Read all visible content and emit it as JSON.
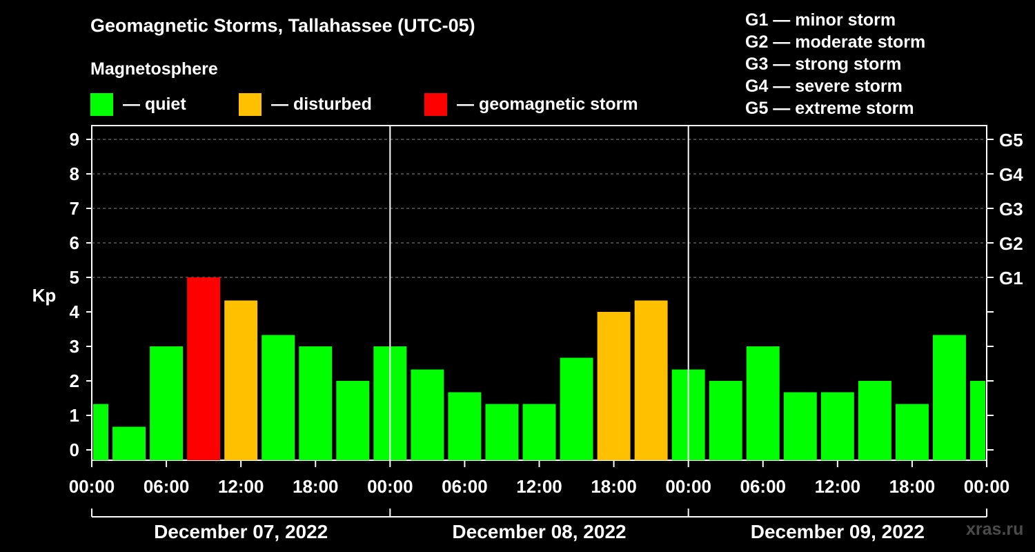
{
  "header": {
    "title": "Geomagnetic Storms, Tallahassee (UTC-05)",
    "subtitle": "Magnetosphere"
  },
  "legend": [
    {
      "label": "— quiet",
      "color": "#00ff00"
    },
    {
      "label": "— disturbed",
      "color": "#ffc000"
    },
    {
      "label": "— geomagnetic storm",
      "color": "#ff0000"
    }
  ],
  "storm_scale": [
    "G1 — minor storm",
    "G2 — moderate storm",
    "G3 — strong storm",
    "G4 — severe storm",
    "G5 — extreme storm"
  ],
  "credit": "xras.ru",
  "chart_data": {
    "type": "bar",
    "ylabel": "Kp",
    "ylim": [
      0,
      9
    ],
    "y_ticks": [
      "0",
      "1",
      "2",
      "3",
      "4",
      "5",
      "6",
      "7",
      "8",
      "9"
    ],
    "right_axis_labels": [
      {
        "kp": 5,
        "label": "G1"
      },
      {
        "kp": 6,
        "label": "G2"
      },
      {
        "kp": 7,
        "label": "G3"
      },
      {
        "kp": 8,
        "label": "G4"
      },
      {
        "kp": 9,
        "label": "G5"
      }
    ],
    "x_tick_labels": [
      "00:00",
      "06:00",
      "12:00",
      "18:00",
      "00:00",
      "06:00",
      "12:00",
      "18:00",
      "00:00",
      "06:00",
      "12:00",
      "18:00",
      "00:00"
    ],
    "days": [
      "December 07, 2022",
      "December 08, 2022",
      "December 09, 2022"
    ],
    "bar_interval_hours": 3,
    "kp_values": [
      1.33,
      0.67,
      3.0,
      5.0,
      4.33,
      3.33,
      3.0,
      2.0,
      3.0,
      2.33,
      1.67,
      1.33,
      1.33,
      2.67,
      4.0,
      4.33,
      2.33,
      2.0,
      3.0,
      1.67,
      1.67,
      2.0,
      1.33,
      3.33,
      2.0
    ],
    "status": [
      "quiet",
      "quiet",
      "quiet",
      "storm",
      "disturbed",
      "quiet",
      "quiet",
      "quiet",
      "quiet",
      "quiet",
      "quiet",
      "quiet",
      "quiet",
      "quiet",
      "disturbed",
      "disturbed",
      "quiet",
      "quiet",
      "quiet",
      "quiet",
      "quiet",
      "quiet",
      "quiet",
      "quiet",
      "quiet"
    ],
    "colors": {
      "quiet": "#00ff00",
      "disturbed": "#ffc000",
      "storm": "#ff0000"
    },
    "grid": true
  }
}
